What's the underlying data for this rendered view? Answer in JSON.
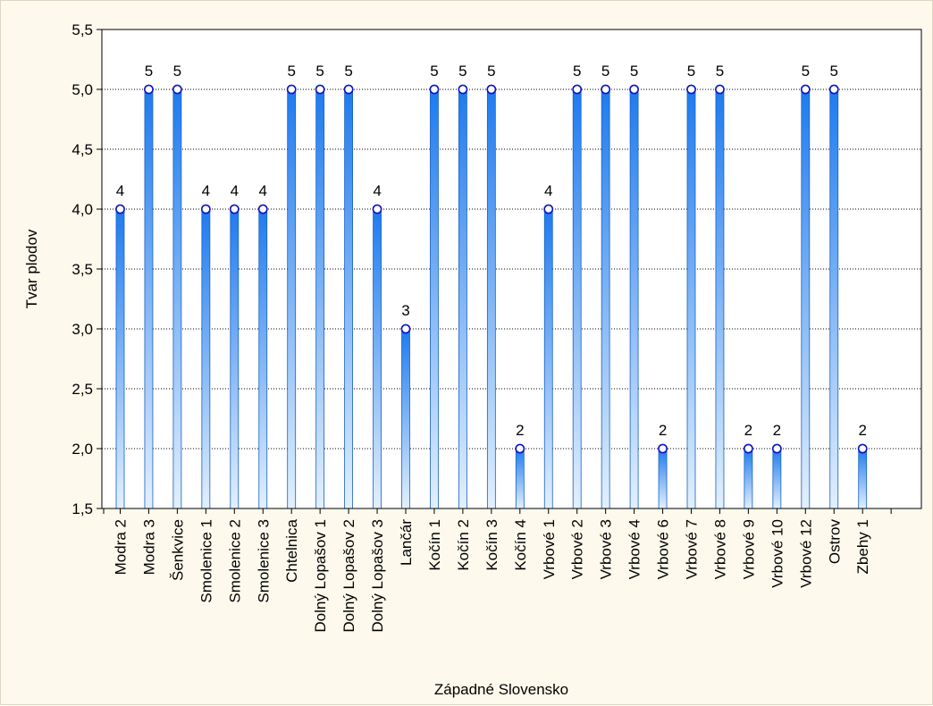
{
  "chart_data": {
    "type": "bar",
    "xlabel": "Západné Slovensko",
    "ylabel": "Tvar plodov",
    "ylim": [
      1.5,
      5.5
    ],
    "yticks": [
      "1,5",
      "2,0",
      "2,5",
      "3,0",
      "3,5",
      "4,0",
      "4,5",
      "5,0",
      "5,5"
    ],
    "categories": [
      "Modra 2",
      "Modra 3",
      "Šenkvice",
      "Smolenice 1",
      "Smolenice 2",
      "Smolenice 3",
      "Chtelnica",
      "Dolný Lopašov 1",
      "Dolný Lopašov 2",
      "Dolný Lopašov 3",
      "Lančár",
      "Kočín 1",
      "Kočín 2",
      "Kočín 3",
      "Kočín 4",
      "Vrbové 1",
      "Vrbové 2",
      "Vrbové 3",
      "Vrbové 4",
      "Vrbové 6",
      "Vrbové 7",
      "Vrbové 8",
      "Vrbové 9",
      "Vrbové 10",
      "Vrbové 12",
      "Ostrov",
      "Zbehy 1"
    ],
    "values": [
      4,
      5,
      5,
      4,
      4,
      4,
      5,
      5,
      5,
      4,
      3,
      5,
      5,
      5,
      2,
      4,
      5,
      5,
      5,
      2,
      5,
      5,
      2,
      2,
      5,
      5,
      2
    ],
    "grid": true,
    "data_labels": true,
    "colors": {
      "bar_top": "#1e7bef",
      "bar_bottom": "#e2f0fd",
      "bar_edge": "#1a5fc0",
      "marker_edge": "#0a14c8",
      "marker_fill": "#ffffff",
      "grid": "#000000",
      "background": "#fdf9ec",
      "plot_bg": "#ffffff"
    }
  }
}
